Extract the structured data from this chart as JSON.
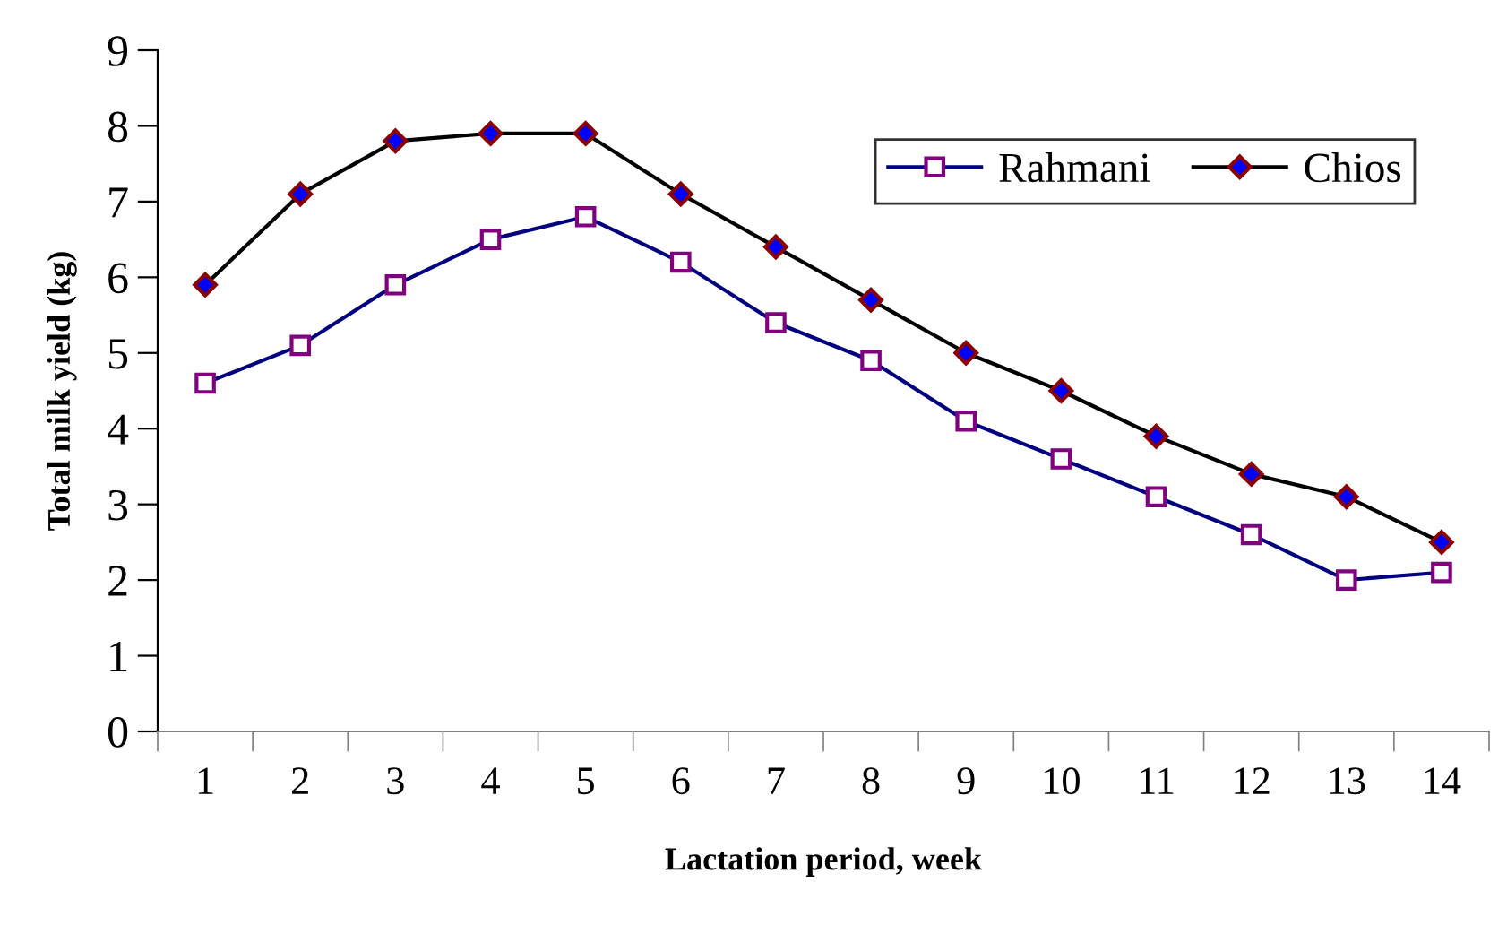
{
  "chart_data": {
    "type": "line",
    "xlabel": "Lactation period, week",
    "ylabel": "Total milk yield (kg)",
    "categories": [
      "1",
      "2",
      "3",
      "4",
      "5",
      "6",
      "7",
      "8",
      "9",
      "10",
      "11",
      "12",
      "13",
      "14"
    ],
    "ylim": [
      0,
      9
    ],
    "yticks": [
      0,
      1,
      2,
      3,
      4,
      5,
      6,
      7,
      8,
      9
    ],
    "grid": false,
    "legend": "top right",
    "series": [
      {
        "name": "Rahmani",
        "color": "#000080",
        "marker": "square",
        "values": [
          4.6,
          5.1,
          5.9,
          6.5,
          6.8,
          6.2,
          5.4,
          4.9,
          4.1,
          3.6,
          3.1,
          2.6,
          2.0,
          2.1
        ]
      },
      {
        "name": "Chios",
        "color": "#000000",
        "marker": "diamond",
        "values": [
          5.9,
          7.1,
          7.8,
          7.9,
          7.9,
          7.1,
          6.4,
          5.7,
          5.0,
          4.5,
          3.9,
          3.4,
          3.1,
          2.5
        ]
      }
    ]
  }
}
